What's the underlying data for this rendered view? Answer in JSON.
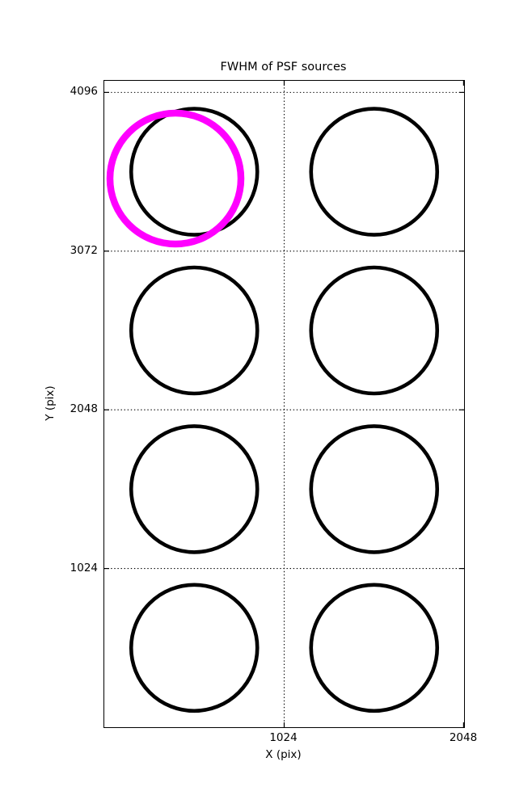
{
  "chart_data": {
    "type": "scatter",
    "title": "FWHM of PSF sources",
    "xlabel": "X (pix)",
    "ylabel": "Y (pix)",
    "xlim": [
      0,
      2048
    ],
    "ylim": [
      0,
      4171
    ],
    "xticks": [
      {
        "value": 1024,
        "label": "1024"
      },
      {
        "value": 2048,
        "label": "2048"
      }
    ],
    "yticks": [
      {
        "value": 1024,
        "label": "1024"
      },
      {
        "value": 2048,
        "label": "2048"
      },
      {
        "value": 3072,
        "label": "3072"
      },
      {
        "value": 4096,
        "label": "4096"
      }
    ],
    "grid": {
      "linestyle": "dotted",
      "color": "#000000"
    },
    "legend": "none",
    "series": [
      {
        "name": "psf-source-circles",
        "color": "#000000",
        "stroke_px": 4.6,
        "radius_px": 78,
        "points": [
          {
            "x": 512,
            "y": 3584
          },
          {
            "x": 1536,
            "y": 3584
          },
          {
            "x": 512,
            "y": 2560
          },
          {
            "x": 1536,
            "y": 2560
          },
          {
            "x": 512,
            "y": 1536
          },
          {
            "x": 1536,
            "y": 1536
          },
          {
            "x": 512,
            "y": 512
          },
          {
            "x": 1536,
            "y": 512
          }
        ]
      },
      {
        "name": "highlighted-source-circle",
        "color": "#ff00ff",
        "stroke_px": 8.5,
        "radius_px": 81,
        "points": [
          {
            "x": 405,
            "y": 3540
          }
        ]
      }
    ]
  }
}
